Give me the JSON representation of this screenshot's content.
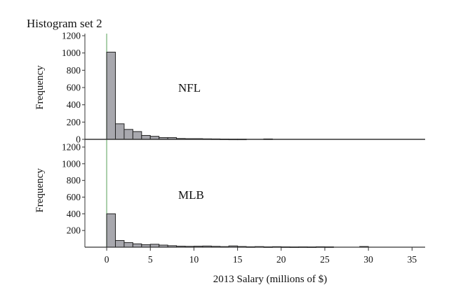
{
  "figure_title": "Histogram set 2",
  "chart_data": [
    {
      "type": "bar",
      "title": "",
      "panel_label": "NFL",
      "xlabel": "",
      "ylabel": "Frequency",
      "ylim": [
        0,
        1200
      ],
      "yticks": [
        "0",
        "200",
        "400",
        "600",
        "800",
        "1000",
        "1200"
      ],
      "bin_width": 1,
      "x": [
        0,
        1,
        2,
        3,
        4,
        5,
        6,
        7,
        8,
        9,
        10,
        11,
        12,
        13,
        14,
        15,
        16,
        17,
        18
      ],
      "values": [
        1010,
        180,
        115,
        90,
        45,
        35,
        20,
        20,
        10,
        8,
        8,
        6,
        5,
        3,
        2,
        2,
        0,
        0,
        5
      ],
      "reference_line_x": 0,
      "bar_color": "#a8a8ae",
      "reference_line_color": "#8fbf8f"
    },
    {
      "type": "bar",
      "title": "",
      "panel_label": "MLB",
      "xlabel": "2013 Salary (millions of $)",
      "ylabel": "Frequency",
      "ylim": [
        0,
        1200
      ],
      "yticks": [
        "200",
        "400",
        "600",
        "800",
        "1000",
        "1200"
      ],
      "xticks": [
        "0",
        "5",
        "10",
        "15",
        "20",
        "25",
        "30",
        "35"
      ],
      "xlim": [
        -2.5,
        36.5
      ],
      "bin_width": 1,
      "x": [
        0,
        1,
        2,
        3,
        4,
        5,
        6,
        7,
        8,
        9,
        10,
        11,
        12,
        13,
        14,
        15,
        16,
        17,
        18,
        19,
        20,
        21,
        22,
        23,
        24,
        25,
        26,
        27,
        28,
        29
      ],
      "values": [
        400,
        80,
        55,
        40,
        30,
        35,
        25,
        18,
        12,
        10,
        12,
        14,
        10,
        7,
        15,
        8,
        5,
        7,
        4,
        6,
        4,
        3,
        4,
        3,
        5,
        4,
        0,
        0,
        0,
        8
      ],
      "reference_line_x": 0,
      "bar_color": "#a8a8ae",
      "reference_line_color": "#8fbf8f"
    }
  ]
}
